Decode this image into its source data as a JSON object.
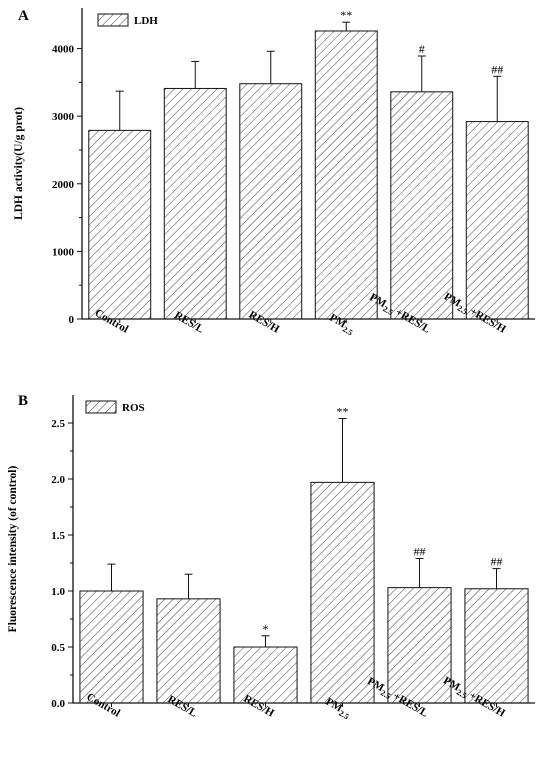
{
  "chart_data": [
    {
      "panel": "A",
      "type": "bar",
      "ylabel": "LDH activity(U/g prot)",
      "ylim": [
        0,
        4600
      ],
      "yticks": [
        0,
        1000,
        2000,
        3000,
        4000
      ],
      "legend": {
        "label": "LDH",
        "position": "top-left"
      },
      "categories": [
        {
          "main": "Control",
          "sub": "",
          "suffix": ""
        },
        {
          "main": "RES/L",
          "sub": "",
          "suffix": ""
        },
        {
          "main": "RES/H",
          "sub": "",
          "suffix": ""
        },
        {
          "main": "PM",
          "sub": "2.5",
          "suffix": ""
        },
        {
          "main": "PM",
          "sub": "2.5",
          "suffix": " +RES/L"
        },
        {
          "main": "PM",
          "sub": "2.5",
          "suffix": " +RES/H"
        }
      ],
      "values": [
        2790,
        3410,
        3480,
        4260,
        3360,
        2920
      ],
      "errors": [
        580,
        400,
        480,
        130,
        530,
        670
      ],
      "significance": [
        "",
        "",
        "",
        "**",
        "#",
        "##"
      ]
    },
    {
      "panel": "B",
      "type": "bar",
      "ylabel": "Fluorescence intensity (of control)",
      "ylim": [
        0,
        2.75
      ],
      "yticks": [
        0.0,
        0.5,
        1.0,
        1.5,
        2.0,
        2.5
      ],
      "legend": {
        "label": "ROS",
        "position": "top-left"
      },
      "categories": [
        {
          "main": "Control",
          "sub": "",
          "suffix": ""
        },
        {
          "main": "RES/L",
          "sub": "",
          "suffix": ""
        },
        {
          "main": "RES/H",
          "sub": "",
          "suffix": ""
        },
        {
          "main": "PM",
          "sub": "2.5",
          "suffix": ""
        },
        {
          "main": "PM",
          "sub": "2.5",
          "suffix": " +RES/L"
        },
        {
          "main": "PM",
          "sub": "2.5",
          "suffix": " +RES/H"
        }
      ],
      "values": [
        1.0,
        0.93,
        0.5,
        1.97,
        1.03,
        1.02
      ],
      "errors": [
        0.24,
        0.22,
        0.1,
        0.57,
        0.26,
        0.18
      ],
      "significance": [
        "",
        "",
        "*",
        "**",
        "##",
        "##"
      ]
    }
  ]
}
